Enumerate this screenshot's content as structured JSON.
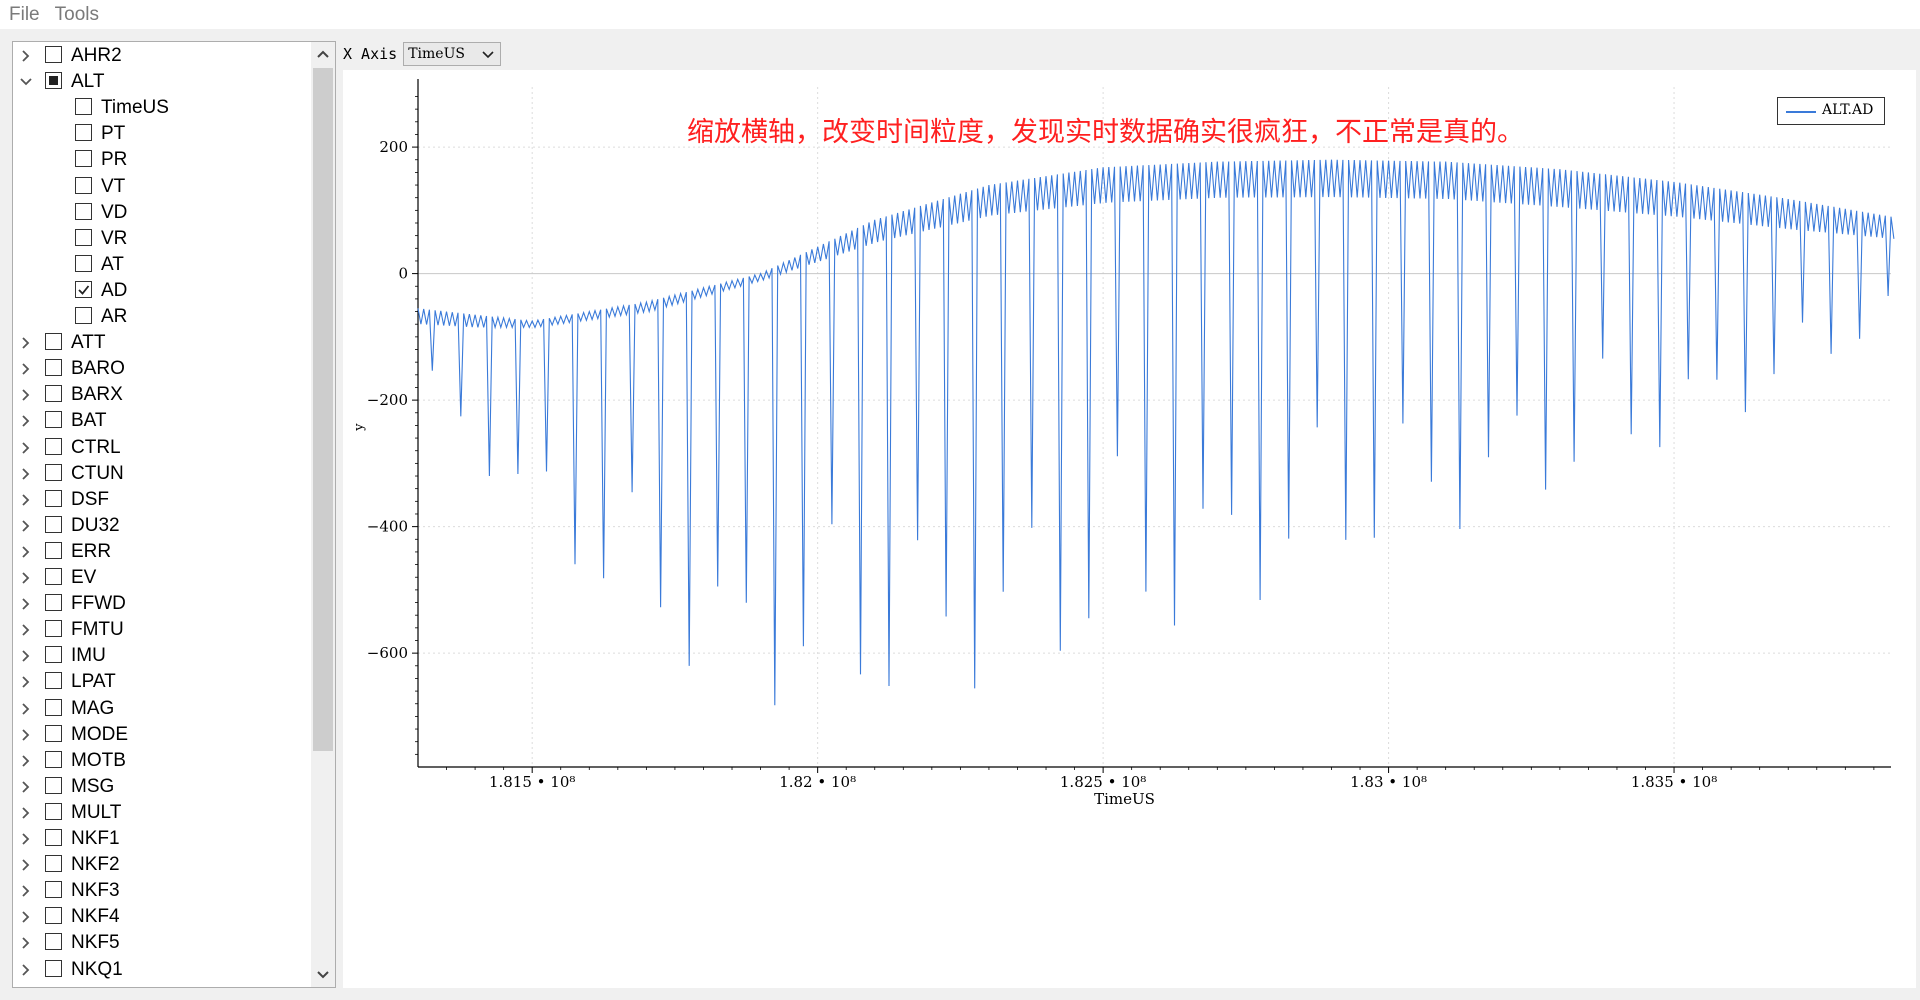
{
  "menu": {
    "items": [
      "File",
      "Tools"
    ]
  },
  "tree": {
    "items": [
      {
        "label": "AHR2",
        "level": 0,
        "expanded": false,
        "state": "unchecked"
      },
      {
        "label": "ALT",
        "level": 0,
        "expanded": true,
        "state": "partial"
      },
      {
        "label": "TimeUS",
        "level": 1,
        "state": "unchecked"
      },
      {
        "label": "PT",
        "level": 1,
        "state": "unchecked"
      },
      {
        "label": "PR",
        "level": 1,
        "state": "unchecked"
      },
      {
        "label": "VT",
        "level": 1,
        "state": "unchecked"
      },
      {
        "label": "VD",
        "level": 1,
        "state": "unchecked"
      },
      {
        "label": "VR",
        "level": 1,
        "state": "unchecked"
      },
      {
        "label": "AT",
        "level": 1,
        "state": "unchecked"
      },
      {
        "label": "AD",
        "level": 1,
        "state": "checked"
      },
      {
        "label": "AR",
        "level": 1,
        "state": "unchecked"
      },
      {
        "label": "ATT",
        "level": 0,
        "expanded": false,
        "state": "unchecked"
      },
      {
        "label": "BARO",
        "level": 0,
        "expanded": false,
        "state": "unchecked"
      },
      {
        "label": "BARX",
        "level": 0,
        "expanded": false,
        "state": "unchecked"
      },
      {
        "label": "BAT",
        "level": 0,
        "expanded": false,
        "state": "unchecked"
      },
      {
        "label": "CTRL",
        "level": 0,
        "expanded": false,
        "state": "unchecked"
      },
      {
        "label": "CTUN",
        "level": 0,
        "expanded": false,
        "state": "unchecked"
      },
      {
        "label": "DSF",
        "level": 0,
        "expanded": false,
        "state": "unchecked"
      },
      {
        "label": "DU32",
        "level": 0,
        "expanded": false,
        "state": "unchecked"
      },
      {
        "label": "ERR",
        "level": 0,
        "expanded": false,
        "state": "unchecked"
      },
      {
        "label": "EV",
        "level": 0,
        "expanded": false,
        "state": "unchecked"
      },
      {
        "label": "FFWD",
        "level": 0,
        "expanded": false,
        "state": "unchecked"
      },
      {
        "label": "FMTU",
        "level": 0,
        "expanded": false,
        "state": "unchecked"
      },
      {
        "label": "IMU",
        "level": 0,
        "expanded": false,
        "state": "unchecked"
      },
      {
        "label": "LPAT",
        "level": 0,
        "expanded": false,
        "state": "unchecked"
      },
      {
        "label": "MAG",
        "level": 0,
        "expanded": false,
        "state": "unchecked"
      },
      {
        "label": "MODE",
        "level": 0,
        "expanded": false,
        "state": "unchecked"
      },
      {
        "label": "MOTB",
        "level": 0,
        "expanded": false,
        "state": "unchecked"
      },
      {
        "label": "MSG",
        "level": 0,
        "expanded": false,
        "state": "unchecked"
      },
      {
        "label": "MULT",
        "level": 0,
        "expanded": false,
        "state": "unchecked"
      },
      {
        "label": "NKF1",
        "level": 0,
        "expanded": false,
        "state": "unchecked"
      },
      {
        "label": "NKF2",
        "level": 0,
        "expanded": false,
        "state": "unchecked"
      },
      {
        "label": "NKF3",
        "level": 0,
        "expanded": false,
        "state": "unchecked"
      },
      {
        "label": "NKF4",
        "level": 0,
        "expanded": false,
        "state": "unchecked"
      },
      {
        "label": "NKF5",
        "level": 0,
        "expanded": false,
        "state": "unchecked"
      },
      {
        "label": "NKQ1",
        "level": 0,
        "expanded": false,
        "state": "unchecked"
      }
    ]
  },
  "xaxis": {
    "label": "X Axis",
    "selected": "TimeUS"
  },
  "annotation": "缩放横轴，改变时间粒度，发现实时数据确实很疯狂，不正常是真的。",
  "chart_data": {
    "type": "line",
    "xlabel": "TimeUS",
    "ylabel": "y",
    "xlim": [
      181300000,
      183880000
    ],
    "ylim": [
      -780,
      295
    ],
    "x_ticks": [
      181500000,
      182000000,
      182500000,
      183000000,
      183500000
    ],
    "x_tick_labels": [
      "1.815 • 10⁸",
      "1.82 • 10⁸",
      "1.825 • 10⁸",
      "1.83 • 10⁸",
      "1.835 • 10⁸"
    ],
    "y_ticks": [
      200,
      0,
      -200,
      -400,
      -600
    ],
    "y_tick_labels": [
      "200",
      "0",
      "−200",
      "−400",
      "−600"
    ],
    "grid": true,
    "legend": "top-right",
    "series": [
      {
        "name": "ALT.AD",
        "color": "#3a7ad9",
        "pattern": "oscillating",
        "cycle_period_x": 10000,
        "upper_envelope": {
          "x": [
            181300000,
            181400000,
            181500000,
            181700000,
            181900000,
            182100000,
            182300000,
            182500000,
            182700000,
            182900000,
            183100000,
            183300000,
            183500000,
            183700000,
            183880000
          ],
          "y": [
            -55,
            -65,
            -75,
            -45,
            0,
            85,
            140,
            168,
            177,
            180,
            177,
            165,
            145,
            118,
            90
          ]
        },
        "lower_envelope": {
          "x": [
            181300000,
            181400000,
            181500000,
            181700000,
            181900000,
            182100000,
            182300000,
            182500000,
            182700000,
            182900000,
            183100000,
            183300000,
            183500000,
            183700000,
            183880000
          ],
          "y": [
            -80,
            -85,
            -85,
            -60,
            -10,
            50,
            92,
            112,
            120,
            121,
            118,
            105,
            90,
            70,
            55
          ]
        },
        "spike_minima": {
          "x": [
            181320000,
            181420000,
            181500000,
            181600000,
            181700000,
            181800000,
            181900000,
            182000000,
            182100000,
            182200000,
            182300000,
            182400000,
            182500000,
            182600000,
            182700000,
            182800000,
            182900000,
            183000000,
            183100000,
            183200000,
            183300000,
            183400000,
            183500000,
            183600000,
            183700000,
            183800000,
            183880000
          ],
          "y": [
            -190,
            -320,
            -400,
            -500,
            -570,
            -650,
            -690,
            -670,
            -680,
            -670,
            -650,
            -620,
            -590,
            -570,
            -540,
            -510,
            -460,
            -430,
            -410,
            -380,
            -340,
            -300,
            -270,
            -230,
            -180,
            -120,
            -80
          ]
        }
      }
    ]
  }
}
